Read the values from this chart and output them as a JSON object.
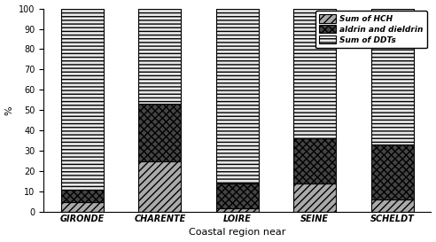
{
  "categories": [
    "GIRONDE",
    "CHARENTE",
    "LOIRE",
    "SEINE",
    "SCHELDT"
  ],
  "hch": [
    5,
    25,
    2,
    14,
    6
  ],
  "aldrin": [
    6,
    28,
    12,
    22,
    27
  ],
  "ddts": [
    89,
    47,
    86,
    64,
    67
  ],
  "xlabel": "Coastal region near",
  "ylabel": "%",
  "ylim": [
    0,
    100
  ],
  "yticks": [
    0,
    10,
    20,
    30,
    40,
    50,
    60,
    70,
    80,
    90,
    100
  ],
  "legend_labels": [
    "Sum of HCH",
    "aldrin and dieldrin",
    "Sum of DDTs"
  ],
  "bar_width": 0.55,
  "hch_color": "#aaaaaa",
  "aldrin_color": "#444444",
  "ddts_color": "#e8e8e8",
  "background_color": "#ffffff"
}
